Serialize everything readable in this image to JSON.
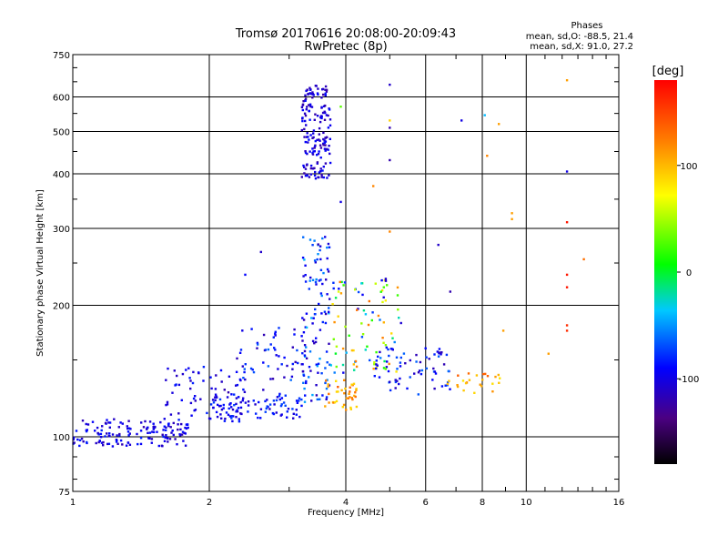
{
  "chart_data": {
    "type": "scatter",
    "title": "Tromsø 20170616 20:08:00-20:09:43",
    "subtitle": "RwPretec (8p)",
    "xlabel": "Frequency [MHz]",
    "ylabel": "Stationary phase Virtual Height [km]",
    "xscale": "log",
    "yscale": "log",
    "xlim": [
      1,
      16
    ],
    "ylim": [
      75,
      750
    ],
    "x_ticks": [
      1,
      2,
      4,
      6,
      8,
      10,
      16
    ],
    "x_tick_labels": [
      "1",
      "2",
      "4",
      "6",
      "8",
      "10",
      "16"
    ],
    "y_ticks": [
      75,
      100,
      200,
      300,
      400,
      500,
      600,
      750
    ],
    "y_tick_labels": [
      "75",
      "100",
      "200",
      "300",
      "400",
      "500",
      "600",
      "750"
    ],
    "grid": true,
    "legend": {
      "title": "Phases",
      "line1": "mean, sd,O: -88.5, 21.4",
      "line2": "mean, sd,X:  91.0, 27.2",
      "placement": "top-right"
    },
    "colorbar": {
      "label": "[deg]",
      "range": [
        -180,
        180
      ],
      "ticks": [
        100,
        0,
        -100
      ],
      "tick_labels": [
        "100",
        "0",
        "-100"
      ]
    },
    "clusters": [
      {
        "x_range": [
          1.0,
          1.8
        ],
        "h_range": [
          95,
          110
        ],
        "phase_range": [
          -120,
          -80
        ],
        "n": 150
      },
      {
        "x_range": [
          1.6,
          2.4
        ],
        "h_range": [
          108,
          145
        ],
        "phase_range": [
          -120,
          -80
        ],
        "n": 70
      },
      {
        "x_range": [
          2.0,
          3.3
        ],
        "h_range": [
          110,
          125
        ],
        "phase_range": [
          -110,
          -70
        ],
        "n": 90
      },
      {
        "x_range": [
          2.3,
          3.3
        ],
        "h_range": [
          125,
          180
        ],
        "phase_range": [
          -120,
          -60
        ],
        "n": 60
      },
      {
        "x_range": [
          3.2,
          3.7
        ],
        "h_range": [
          390,
          640
        ],
        "phase_range": [
          -125,
          -85
        ],
        "n": 170
      },
      {
        "x_range": [
          3.2,
          3.7
        ],
        "h_range": [
          120,
          290
        ],
        "phase_range": [
          -120,
          -40
        ],
        "n": 110
      },
      {
        "x_range": [
          3.6,
          4.3
        ],
        "h_range": [
          115,
          135
        ],
        "phase_range": [
          80,
          140
        ],
        "n": 40
      },
      {
        "x_range": [
          3.7,
          5.3
        ],
        "h_range": [
          140,
          230
        ],
        "phase_range": [
          -110,
          130
        ],
        "n": 90
      },
      {
        "x_range": [
          4.5,
          6.8
        ],
        "h_range": [
          125,
          160
        ],
        "phase_range": [
          -120,
          -60
        ],
        "n": 70
      },
      {
        "x_range": [
          6.5,
          8.8
        ],
        "h_range": [
          125,
          140
        ],
        "phase_range": [
          80,
          140
        ],
        "n": 25
      }
    ],
    "isolated_points": [
      {
        "x": 5.0,
        "h": 640,
        "phase": -110
      },
      {
        "x": 7.2,
        "h": 530,
        "phase": -100
      },
      {
        "x": 8.1,
        "h": 545,
        "phase": -40
      },
      {
        "x": 8.7,
        "h": 520,
        "phase": 110
      },
      {
        "x": 12.3,
        "h": 655,
        "phase": 110
      },
      {
        "x": 12.3,
        "h": 405,
        "phase": -100
      },
      {
        "x": 8.2,
        "h": 440,
        "phase": 120
      },
      {
        "x": 9.3,
        "h": 325,
        "phase": 110
      },
      {
        "x": 9.3,
        "h": 315,
        "phase": 110
      },
      {
        "x": 12.3,
        "h": 310,
        "phase": 170
      },
      {
        "x": 12.3,
        "h": 235,
        "phase": 170
      },
      {
        "x": 12.3,
        "h": 220,
        "phase": 170
      },
      {
        "x": 13.4,
        "h": 255,
        "phase": 130
      },
      {
        "x": 12.3,
        "h": 180,
        "phase": 160
      },
      {
        "x": 12.3,
        "h": 175,
        "phase": 160
      },
      {
        "x": 11.2,
        "h": 155,
        "phase": 110
      },
      {
        "x": 8.9,
        "h": 175,
        "phase": 110
      },
      {
        "x": 5.0,
        "h": 295,
        "phase": 120
      },
      {
        "x": 5.0,
        "h": 430,
        "phase": -120
      },
      {
        "x": 5.0,
        "h": 510,
        "phase": -120
      },
      {
        "x": 5.0,
        "h": 530,
        "phase": 90
      },
      {
        "x": 3.9,
        "h": 345,
        "phase": -100
      },
      {
        "x": 3.9,
        "h": 570,
        "phase": 30
      },
      {
        "x": 2.6,
        "h": 265,
        "phase": -110
      },
      {
        "x": 2.4,
        "h": 235,
        "phase": -90
      },
      {
        "x": 6.4,
        "h": 275,
        "phase": -110
      },
      {
        "x": 6.8,
        "h": 215,
        "phase": -120
      },
      {
        "x": 4.6,
        "h": 375,
        "phase": 120
      },
      {
        "x": 4.9,
        "h": 230,
        "phase": -110
      }
    ]
  }
}
